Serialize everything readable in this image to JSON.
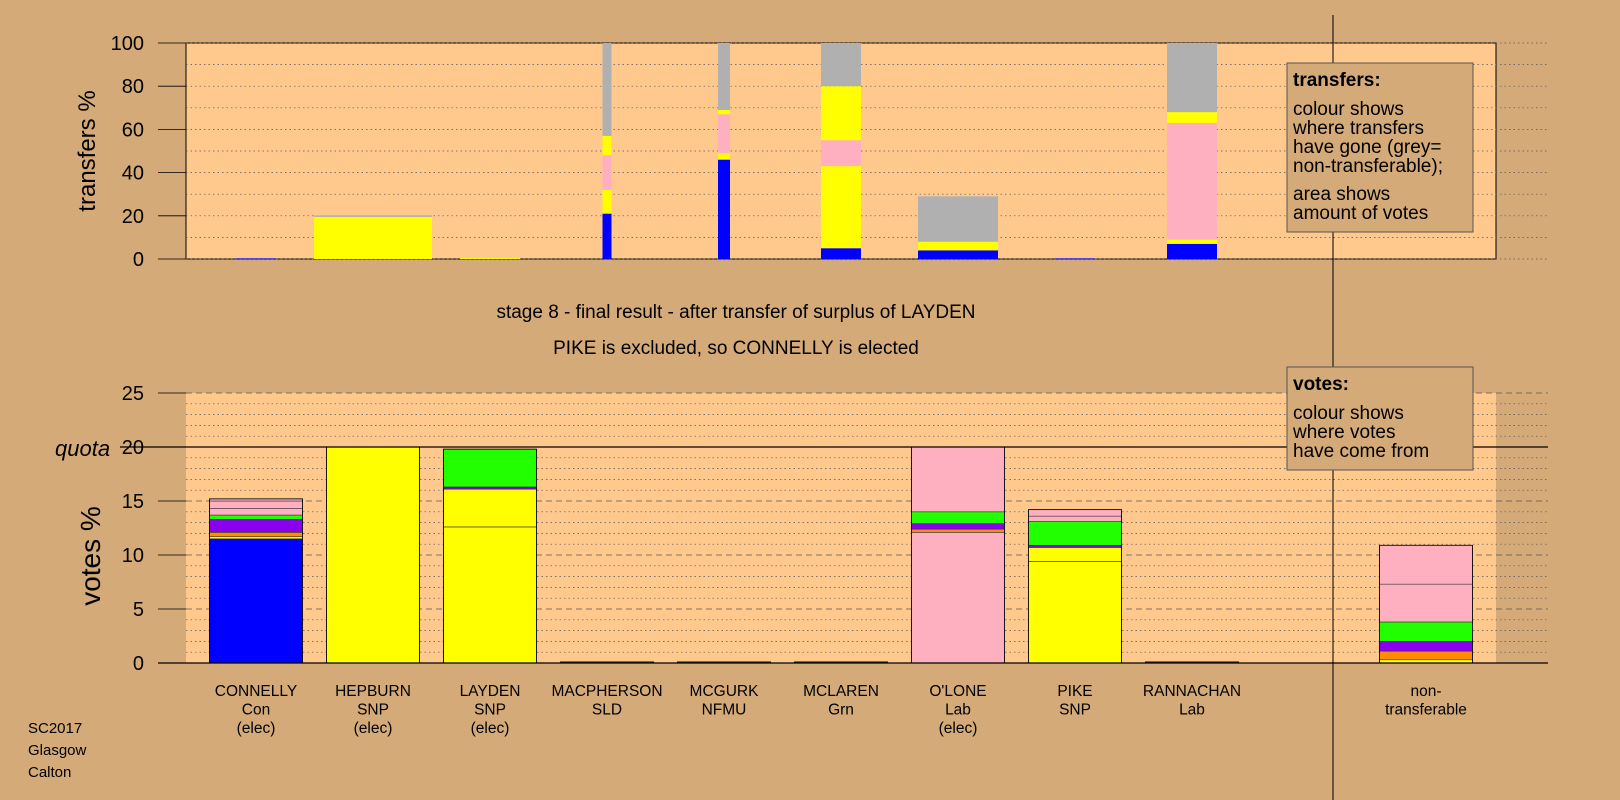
{
  "chart_data": [
    {
      "name": "transfers",
      "type": "stacked-bar",
      "ylabel": "transfers %",
      "ylim": [
        0,
        100
      ],
      "yticks": [
        0,
        20,
        40,
        60,
        80,
        100
      ],
      "note": {
        "title": "transfers:",
        "lines": [
          "colour shows",
          "where transfers",
          "have gone (grey=",
          "non-transferable);"
        ],
        "lines2": [
          "area shows",
          "amount of votes"
        ]
      },
      "bars": [
        {
          "candidate": "CONNELLY",
          "segments": [
            {
              "color": "#0000ff",
              "value": 0.3
            }
          ]
        },
        {
          "candidate": "HEPBURN",
          "segments": [
            {
              "color": "#ffff00",
              "value": 19.5
            },
            {
              "color": "#b0b0b0",
              "value": 0.7
            }
          ]
        },
        {
          "candidate": "LAYDEN",
          "segments": [
            {
              "color": "#ffff00",
              "value": 0.4
            }
          ]
        },
        {
          "candidate": "MACPHERSON",
          "segments": [
            {
              "color": "#0000ff",
              "value": 21
            },
            {
              "color": "#ffff00",
              "value": 11
            },
            {
              "color": "#ffb0c0",
              "value": 16
            },
            {
              "color": "#ffff00",
              "value": 9
            },
            {
              "color": "#b0b0b0",
              "value": 43
            }
          ]
        },
        {
          "candidate": "MCGURK",
          "segments": [
            {
              "color": "#0000ff",
              "value": 46
            },
            {
              "color": "#ffff00",
              "value": 3
            },
            {
              "color": "#ffb0c0",
              "value": 18
            },
            {
              "color": "#ffff00",
              "value": 2
            },
            {
              "color": "#b0b0b0",
              "value": 31
            }
          ]
        },
        {
          "candidate": "MCLAREN",
          "segments": [
            {
              "color": "#0000ff",
              "value": 5
            },
            {
              "color": "#ffff00",
              "value": 38
            },
            {
              "color": "#ffb0c0",
              "value": 12
            },
            {
              "color": "#ffff00",
              "value": 25
            },
            {
              "color": "#b0b0b0",
              "value": 20
            }
          ]
        },
        {
          "candidate": "O'LONE",
          "segments": [
            {
              "color": "#0000ff",
              "value": 4
            },
            {
              "color": "#ffff00",
              "value": 4
            },
            {
              "color": "#b0b0b0",
              "value": 21
            }
          ]
        },
        {
          "candidate": "PIKE",
          "segments": [
            {
              "color": "#0000ff",
              "value": 0.3
            }
          ]
        },
        {
          "candidate": "RANNACHAN",
          "segments": [
            {
              "color": "#0000ff",
              "value": 7
            },
            {
              "color": "#ffff00",
              "value": 2
            },
            {
              "color": "#ffb0c0",
              "value": 54
            },
            {
              "color": "#ffff00",
              "value": 5
            },
            {
              "color": "#b0b0b0",
              "value": 32
            }
          ]
        }
      ]
    },
    {
      "name": "votes",
      "type": "stacked-bar",
      "ylabel": "votes %",
      "ylim": [
        0,
        25
      ],
      "yticks": [
        0,
        5,
        10,
        15,
        20,
        25
      ],
      "quota": 20,
      "quota_label": "quota",
      "note": {
        "title": "votes:",
        "lines": [
          "colour shows",
          "where votes",
          "have come from"
        ]
      },
      "bars": [
        {
          "candidate": "CONNELLY",
          "party": "Con",
          "status": "(elec)",
          "segments": [
            {
              "color": "#0000ff",
              "value": 11.5
            },
            {
              "color": "#ffff00",
              "value": 0.2
            },
            {
              "color": "#ff8c00",
              "value": 0.4
            },
            {
              "color": "#8800ee",
              "value": 1.2
            },
            {
              "color": "#22ff00",
              "value": 0.4
            },
            {
              "color": "#ffb0c0",
              "value": 0.6
            },
            {
              "color": "#ffb0c0",
              "value": 0.7
            },
            {
              "color": "#ffb0c0",
              "value": 0.2
            }
          ]
        },
        {
          "candidate": "HEPBURN",
          "party": "SNP",
          "status": "(elec)",
          "segments": [
            {
              "color": "#ffff00",
              "value": 20.0
            }
          ]
        },
        {
          "candidate": "LAYDEN",
          "party": "SNP",
          "status": "(elec)",
          "segments": [
            {
              "color": "#ffff00",
              "value": 12.6
            },
            {
              "color": "#ffff00",
              "value": 3.5
            },
            {
              "color": "#8800ee",
              "value": 0.2
            },
            {
              "color": "#22ff00",
              "value": 3.5
            }
          ]
        },
        {
          "candidate": "MACPHERSON",
          "party": "SLD",
          "status": "",
          "segments": [
            {
              "color": "#ffff00",
              "value": 0.1
            }
          ]
        },
        {
          "candidate": "MCGURK",
          "party": "NFMU",
          "status": "",
          "segments": [
            {
              "color": "#ffff00",
              "value": 0.1
            }
          ]
        },
        {
          "candidate": "MCLAREN",
          "party": "Grn",
          "status": "",
          "segments": [
            {
              "color": "#22ff00",
              "value": 0.1
            }
          ]
        },
        {
          "candidate": "O'LONE",
          "party": "Lab",
          "status": "(elec)",
          "segments": [
            {
              "color": "#ffb0c0",
              "value": 12.1
            },
            {
              "color": "#ff8c00",
              "value": 0.3
            },
            {
              "color": "#8800ee",
              "value": 0.5
            },
            {
              "color": "#22ff00",
              "value": 1.1
            },
            {
              "color": "#ffb0c0",
              "value": 6.0
            }
          ]
        },
        {
          "candidate": "PIKE",
          "party": "SNP",
          "status": "",
          "segments": [
            {
              "color": "#ffff00",
              "value": 9.4
            },
            {
              "color": "#ffff00",
              "value": 1.3
            },
            {
              "color": "#8800ee",
              "value": 0.2
            },
            {
              "color": "#22ff00",
              "value": 2.2
            },
            {
              "color": "#ffb0c0",
              "value": 0.5
            },
            {
              "color": "#ffb0c0",
              "value": 0.6
            }
          ]
        },
        {
          "candidate": "RANNACHAN",
          "party": "Lab",
          "status": "",
          "segments": [
            {
              "color": "#ffb0c0",
              "value": 0.1
            }
          ]
        },
        {
          "candidate": "non-",
          "party": "transferable",
          "status": "",
          "segments": [
            {
              "color": "#ffff00",
              "value": 0.3
            },
            {
              "color": "#ff8c00",
              "value": 0.8
            },
            {
              "color": "#8800ee",
              "value": 0.9
            },
            {
              "color": "#22ff00",
              "value": 1.8
            },
            {
              "color": "#ffb0c0",
              "value": 3.5
            },
            {
              "color": "#ffb0c0",
              "value": 3.6
            }
          ]
        }
      ]
    }
  ],
  "stage_title": "stage 8 - final result - after transfer of surplus of LAYDEN",
  "stage_subtitle": "PIKE is excluded, so CONNELLY is elected",
  "footer": [
    "SC2017",
    "Glasgow",
    "Calton"
  ]
}
